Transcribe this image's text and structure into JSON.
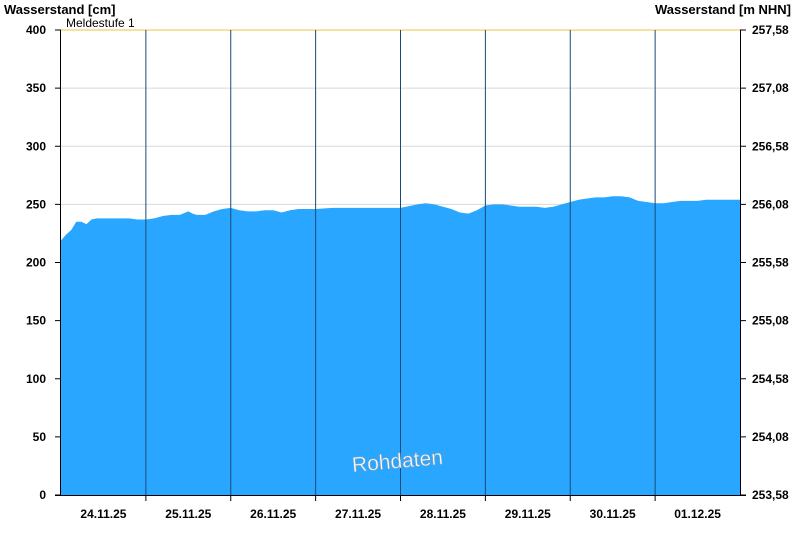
{
  "chart_data": {
    "type": "area",
    "left_axis_title": "Wasserstand [cm]",
    "right_axis_title": "Wasserstand [m NHN]",
    "ylim": [
      0,
      400
    ],
    "y_ticks": [
      0,
      50,
      100,
      150,
      200,
      250,
      300,
      350,
      400
    ],
    "right_y_tick_labels": [
      "253,58",
      "254,08",
      "254,58",
      "255,08",
      "255,58",
      "256,08",
      "256,58",
      "257,08",
      "257,58"
    ],
    "x_range": [
      0,
      8
    ],
    "x_unit": "days from 23.11.25 12:00",
    "x_tick_labels": [
      "24.11.25",
      "25.11.25",
      "26.11.25",
      "27.11.25",
      "28.11.25",
      "29.11.25",
      "30.11.25",
      "01.12.25"
    ],
    "day_boundaries": [
      1,
      2,
      3,
      4,
      5,
      6,
      7
    ],
    "threshold": {
      "label": "Meldestufe 1",
      "value": 400,
      "color": "#f0c040"
    },
    "watermark": "Rohdaten",
    "grid": "horizontal",
    "fill_color": "#29a6ff",
    "series": [
      {
        "x": [
          0,
          0.06,
          0.12,
          0.18,
          0.24,
          0.3,
          0.36,
          0.42,
          0.5,
          0.6,
          0.7,
          0.8,
          0.9,
          1.0,
          1.1,
          1.2,
          1.3,
          1.4,
          1.5,
          1.55,
          1.6,
          1.7,
          1.8,
          1.9,
          2.0,
          2.1,
          2.2,
          2.3,
          2.4,
          2.5,
          2.6,
          2.7,
          2.8,
          2.9,
          3.0,
          3.2,
          3.4,
          3.6,
          3.8,
          4.0,
          4.2,
          4.3,
          4.4,
          4.5,
          4.6,
          4.7,
          4.8,
          4.9,
          5.0,
          5.1,
          5.2,
          5.3,
          5.4,
          5.5,
          5.6,
          5.7,
          5.8,
          5.9,
          6.0,
          6.1,
          6.2,
          6.3,
          6.4,
          6.5,
          6.6,
          6.7,
          6.8,
          6.9,
          7.0,
          7.1,
          7.2,
          7.3,
          7.4,
          7.5,
          7.6,
          7.7,
          7.8,
          7.9,
          8.0
        ],
        "values": [
          219,
          224,
          228,
          235,
          235,
          233,
          237,
          238,
          238,
          238,
          238,
          238,
          237,
          237,
          238,
          240,
          241,
          241,
          244,
          242,
          241,
          241,
          244,
          246,
          247,
          245,
          244,
          244,
          245,
          245,
          243,
          245,
          246,
          246,
          246,
          247,
          247,
          247,
          247,
          247,
          250,
          251,
          250,
          248,
          246,
          243,
          242,
          245,
          249,
          250,
          250,
          249,
          248,
          248,
          248,
          247,
          248,
          250,
          252,
          254,
          255,
          256,
          256,
          257,
          257,
          256,
          253,
          252,
          251,
          251,
          252,
          253,
          253,
          253,
          254,
          254,
          254,
          254,
          254
        ]
      }
    ]
  }
}
